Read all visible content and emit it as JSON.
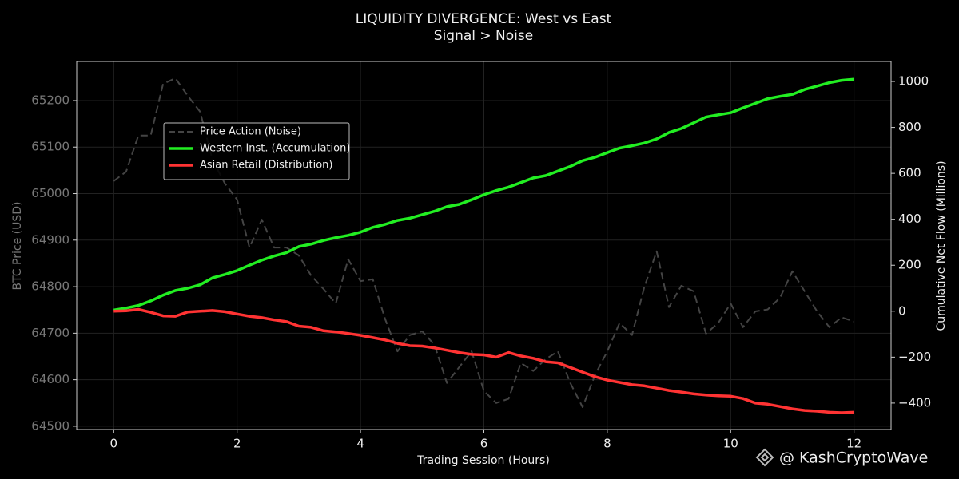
{
  "chart_data": {
    "type": "line",
    "title": "LIQUIDITY DIVERGENCE: West vs East",
    "subtitle": "Signal > Noise",
    "xlabel": "Trading Session (Hours)",
    "ylabel": "BTC Price (USD)",
    "y2label": "Cumulative Net Flow (Millions)",
    "watermark": "@ KashCryptoWave",
    "x": [
      0,
      0.2,
      0.4,
      0.6,
      0.8,
      1,
      1.2,
      1.4,
      1.6,
      1.8,
      2,
      2.2,
      2.4,
      2.6,
      2.8,
      3,
      3.2,
      3.4,
      3.6,
      3.8,
      4,
      4.2,
      4.4,
      4.6,
      4.8,
      5,
      5.2,
      5.4,
      5.6,
      5.8,
      6,
      6.2,
      6.4,
      6.6,
      6.8,
      7,
      7.2,
      7.4,
      7.6,
      7.8,
      8,
      8.2,
      8.4,
      8.6,
      8.8,
      9,
      9.2,
      9.4,
      9.6,
      9.8,
      10,
      10.2,
      10.4,
      10.6,
      10.8,
      11,
      11.2,
      11.4,
      11.6,
      11.8,
      12
    ],
    "series": [
      {
        "name": "Price Action (Noise)",
        "color": "#444444",
        "dashed": true,
        "axis": "y",
        "values": [
          65027,
          65047,
          65125,
          65125,
          65236,
          65248,
          65210,
          65176,
          65073,
          65022,
          64987,
          64884,
          64944,
          64884,
          64884,
          64867,
          64824,
          64795,
          64764,
          64859,
          64812,
          64816,
          64730,
          64661,
          64696,
          64704,
          64675,
          64593,
          64627,
          64661,
          64576,
          64550,
          64559,
          64636,
          64619,
          64644,
          64661,
          64593,
          64541,
          64610,
          64661,
          64722,
          64696,
          64799,
          64876,
          64756,
          64802,
          64790,
          64699,
          64722,
          64764,
          64713,
          64747,
          64751,
          64776,
          64833,
          64790,
          64747,
          64713,
          64734,
          64725
        ]
      },
      {
        "name": "Western Inst. (Accumulation)",
        "color": "#22ee22",
        "axis": "y2",
        "values": [
          5,
          14,
          25,
          45,
          70,
          90,
          100,
          115,
          145,
          160,
          177,
          200,
          222,
          240,
          255,
          281,
          292,
          308,
          320,
          330,
          344,
          365,
          378,
          395,
          405,
          420,
          435,
          455,
          465,
          485,
          507,
          525,
          540,
          560,
          580,
          590,
          610,
          630,
          655,
          670,
          690,
          710,
          720,
          732,
          750,
          778,
          795,
          820,
          845,
          855,
          864,
          885,
          905,
          925,
          935,
          944,
          965,
          980,
          995,
          1005,
          1010
        ]
      },
      {
        "name": "Asian Retail (Distribution)",
        "color": "#ff3333",
        "axis": "y2",
        "values": [
          0,
          2,
          8,
          -5,
          -20,
          -22,
          -3,
          0,
          3,
          -2,
          -12,
          -22,
          -28,
          -38,
          -45,
          -65,
          -70,
          -85,
          -90,
          -97,
          -105,
          -115,
          -125,
          -140,
          -150,
          -152,
          -160,
          -170,
          -180,
          -188,
          -190,
          -200,
          -180,
          -195,
          -205,
          -220,
          -225,
          -245,
          -265,
          -285,
          -300,
          -310,
          -320,
          -325,
          -335,
          -345,
          -352,
          -360,
          -365,
          -368,
          -370,
          -380,
          -400,
          -405,
          -415,
          -425,
          -432,
          -435,
          -440,
          -442,
          -440
        ]
      }
    ],
    "xlim": [
      -0.6,
      12.6
    ],
    "xticks": [
      0,
      2,
      4,
      6,
      8,
      10,
      12
    ],
    "ylim": [
      64493,
      65284
    ],
    "yticks": [
      64500,
      64600,
      64700,
      64800,
      64900,
      65000,
      65100,
      65200
    ],
    "y2lim": [
      -515,
      1087
    ],
    "y2ticks": [
      {
        "value": -400,
        "label": "−400"
      },
      {
        "value": -200,
        "label": "−200"
      },
      0,
      200,
      400,
      600,
      800,
      1000
    ],
    "grid": true,
    "legend": "upper left"
  }
}
